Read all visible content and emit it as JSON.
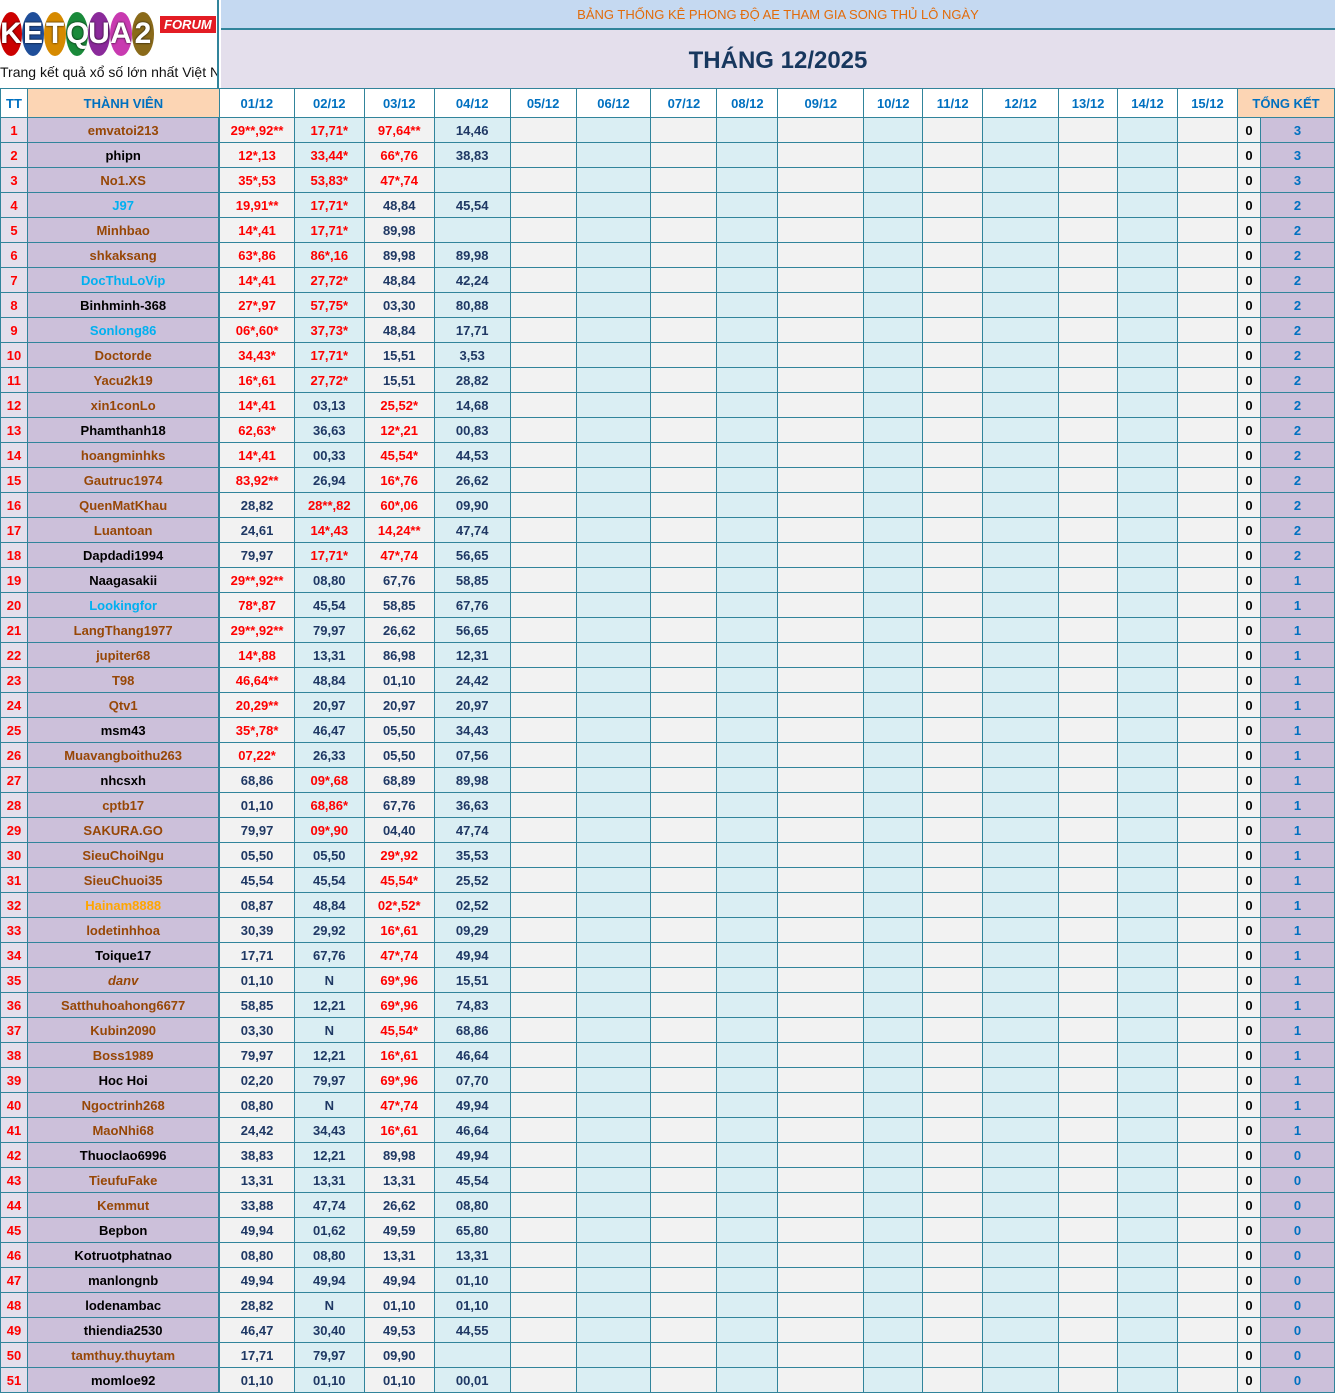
{
  "logo": {
    "letters": "KETQUA2",
    "badge": "FORUM",
    "tagline": "Trang kết quả xổ số lớn nhất Việt Nam"
  },
  "title": "BẢNG THỐNG KÊ PHONG ĐỘ AE THAM GIA SONG THỦ LÔ NGÀY",
  "month": "THÁNG 12/2025",
  "headers": {
    "tt": "TT",
    "member": "THÀNH VIÊN",
    "dates": [
      "01/12",
      "02/12",
      "03/12",
      "04/12",
      "05/12",
      "06/12",
      "07/12",
      "08/12",
      "09/12",
      "10/12",
      "11/12",
      "12/12",
      "13/12",
      "14/12",
      "15/12"
    ],
    "summary": "TỔNG KẾT"
  },
  "colors": {
    "border": "#31849b",
    "hit": "#ff0000",
    "value": "#1f3864",
    "name_brown": "#974706",
    "name_cyan": "#00b0f0",
    "name_orange": "#ffa500",
    "total": "#0070c0"
  },
  "rows": [
    {
      "tt": "1",
      "name": "emvatoi213",
      "style": "r",
      "v": [
        "29**,92**",
        "17,71*",
        "97,64**",
        "14,46"
      ],
      "z": "0",
      "total": "3"
    },
    {
      "tt": "2",
      "name": "phipn",
      "style": "b",
      "v": [
        "12*,13",
        "33,44*",
        "66*,76",
        "38,83"
      ],
      "z": "0",
      "total": "3"
    },
    {
      "tt": "3",
      "name": "No1.XS",
      "style": "r",
      "v": [
        "35*,53",
        "53,83*",
        "47*,74",
        ""
      ],
      "z": "0",
      "total": "3"
    },
    {
      "tt": "4",
      "name": "J97",
      "style": "c",
      "v": [
        "19,91**",
        "17,71*",
        "48,84",
        "45,54"
      ],
      "z": "0",
      "total": "2"
    },
    {
      "tt": "5",
      "name": "Minhbao",
      "style": "r",
      "v": [
        "14*,41",
        "17,71*",
        "89,98",
        ""
      ],
      "z": "0",
      "total": "2"
    },
    {
      "tt": "6",
      "name": "shkaksang",
      "style": "r",
      "v": [
        "63*,86",
        "86*,16",
        "89,98",
        "89,98"
      ],
      "z": "0",
      "total": "2"
    },
    {
      "tt": "7",
      "name": "DocThuLoVip",
      "style": "c",
      "v": [
        "14*,41",
        "27,72*",
        "48,84",
        "42,24"
      ],
      "z": "0",
      "total": "2"
    },
    {
      "tt": "8",
      "name": "Binhminh-368",
      "style": "b",
      "v": [
        "27*,97",
        "57,75*",
        "03,30",
        "80,88"
      ],
      "z": "0",
      "total": "2"
    },
    {
      "tt": "9",
      "name": "Sonlong86",
      "style": "c",
      "v": [
        "06*,60*",
        "37,73*",
        "48,84",
        "17,71"
      ],
      "z": "0",
      "total": "2"
    },
    {
      "tt": "10",
      "name": "Doctorde",
      "style": "r",
      "v": [
        "34,43*",
        "17,71*",
        "15,51",
        "3,53"
      ],
      "z": "0",
      "total": "2"
    },
    {
      "tt": "11",
      "name": "Yacu2k19",
      "style": "r",
      "v": [
        "16*,61",
        "27,72*",
        "15,51",
        "28,82"
      ],
      "z": "0",
      "total": "2"
    },
    {
      "tt": "12",
      "name": "xin1conLo",
      "style": "r",
      "v": [
        "14*,41",
        "03,13",
        "25,52*",
        "14,68"
      ],
      "z": "0",
      "total": "2"
    },
    {
      "tt": "13",
      "name": "Phamthanh18",
      "style": "b",
      "v": [
        "62,63*",
        "36,63",
        "12*,21",
        "00,83"
      ],
      "z": "0",
      "total": "2"
    },
    {
      "tt": "14",
      "name": "hoangminhks",
      "style": "r",
      "v": [
        "14*,41",
        "00,33",
        "45,54*",
        "44,53"
      ],
      "z": "0",
      "total": "2"
    },
    {
      "tt": "15",
      "name": "Gautruc1974",
      "style": "r",
      "v": [
        "83,92**",
        "26,94",
        "16*,76",
        "26,62"
      ],
      "z": "0",
      "total": "2"
    },
    {
      "tt": "16",
      "name": "QuenMatKhau",
      "style": "r",
      "v": [
        "28,82",
        "28**,82",
        "60*,06",
        "09,90"
      ],
      "z": "0",
      "total": "2"
    },
    {
      "tt": "17",
      "name": "Luantoan",
      "style": "r",
      "v": [
        "24,61",
        "14*,43",
        "14,24**",
        "47,74"
      ],
      "z": "0",
      "total": "2"
    },
    {
      "tt": "18",
      "name": "Dapdadi1994",
      "style": "b",
      "v": [
        "79,97",
        "17,71*",
        "47*,74",
        "56,65"
      ],
      "z": "0",
      "total": "2"
    },
    {
      "tt": "19",
      "name": "Naagasakii",
      "style": "b",
      "v": [
        "29**,92**",
        "08,80",
        "67,76",
        "58,85"
      ],
      "z": "0",
      "total": "1"
    },
    {
      "tt": "20",
      "name": "Lookingfor",
      "style": "c",
      "v": [
        "78*,87",
        "45,54",
        "58,85",
        "67,76"
      ],
      "z": "0",
      "total": "1"
    },
    {
      "tt": "21",
      "name": "LangThang1977",
      "style": "r",
      "v": [
        "29**,92**",
        "79,97",
        "26,62",
        "56,65"
      ],
      "z": "0",
      "total": "1"
    },
    {
      "tt": "22",
      "name": "jupiter68",
      "style": "r",
      "v": [
        "14*,88",
        "13,31",
        "86,98",
        "12,31"
      ],
      "z": "0",
      "total": "1"
    },
    {
      "tt": "23",
      "name": "T98",
      "style": "r",
      "v": [
        "46,64**",
        "48,84",
        "01,10",
        "24,42"
      ],
      "z": "0",
      "total": "1"
    },
    {
      "tt": "24",
      "name": "Qtv1",
      "style": "r",
      "v": [
        "20,29**",
        "20,97",
        "20,97",
        "20,97"
      ],
      "z": "0",
      "total": "1"
    },
    {
      "tt": "25",
      "name": "msm43",
      "style": "b",
      "v": [
        "35*,78*",
        "46,47",
        "05,50",
        "34,43"
      ],
      "z": "0",
      "total": "1"
    },
    {
      "tt": "26",
      "name": "Muavangboithu263",
      "style": "r",
      "v": [
        "07,22*",
        "26,33",
        "05,50",
        "07,56"
      ],
      "z": "0",
      "total": "1"
    },
    {
      "tt": "27",
      "name": "nhcsxh",
      "style": "b",
      "v": [
        "68,86",
        "09*,68",
        "68,89",
        "89,98"
      ],
      "z": "0",
      "total": "1"
    },
    {
      "tt": "28",
      "name": "cptb17",
      "style": "r",
      "v": [
        "01,10",
        "68,86*",
        "67,76",
        "36,63"
      ],
      "z": "0",
      "total": "1"
    },
    {
      "tt": "29",
      "name": "SAKURA.GO",
      "style": "r",
      "v": [
        "79,97",
        "09*,90",
        "04,40",
        "47,74"
      ],
      "z": "0",
      "total": "1"
    },
    {
      "tt": "30",
      "name": "SieuChoiNgu",
      "style": "r",
      "v": [
        "05,50",
        "05,50",
        "29*,92",
        "35,53"
      ],
      "z": "0",
      "total": "1"
    },
    {
      "tt": "31",
      "name": "SieuChuoi35",
      "style": "r",
      "v": [
        "45,54",
        "45,54",
        "45,54*",
        "25,52"
      ],
      "z": "0",
      "total": "1"
    },
    {
      "tt": "32",
      "name": "Hainam8888",
      "style": "o",
      "v": [
        "08,87",
        "48,84",
        "02*,52*",
        "02,52"
      ],
      "z": "0",
      "total": "1"
    },
    {
      "tt": "33",
      "name": "lodetinhhoa",
      "style": "r",
      "v": [
        "30,39",
        "29,92",
        "16*,61",
        "09,29"
      ],
      "z": "0",
      "total": "1"
    },
    {
      "tt": "34",
      "name": "Toique17",
      "style": "b",
      "v": [
        "17,71",
        "67,76",
        "47*,74",
        "49,94"
      ],
      "z": "0",
      "total": "1"
    },
    {
      "tt": "35",
      "name": "danv",
      "style": "i",
      "v": [
        "01,10",
        "N",
        "69*,96",
        "15,51"
      ],
      "z": "0",
      "total": "1"
    },
    {
      "tt": "36",
      "name": "Satthuhoahong6677",
      "style": "r",
      "v": [
        "58,85",
        "12,21",
        "69*,96",
        "74,83"
      ],
      "z": "0",
      "total": "1"
    },
    {
      "tt": "37",
      "name": "Kubin2090",
      "style": "r",
      "v": [
        "03,30",
        "N",
        "45,54*",
        "68,86"
      ],
      "z": "0",
      "total": "1"
    },
    {
      "tt": "38",
      "name": "Boss1989",
      "style": "r",
      "v": [
        "79,97",
        "12,21",
        "16*,61",
        "46,64"
      ],
      "z": "0",
      "total": "1"
    },
    {
      "tt": "39",
      "name": "Hoc Hoi",
      "style": "b",
      "v": [
        "02,20",
        "79,97",
        "69*,96",
        "07,70"
      ],
      "z": "0",
      "total": "1"
    },
    {
      "tt": "40",
      "name": "Ngoctrinh268",
      "style": "r",
      "v": [
        "08,80",
        "N",
        "47*,74",
        "49,94"
      ],
      "z": "0",
      "total": "1"
    },
    {
      "tt": "41",
      "name": "MaoNhi68",
      "style": "r",
      "v": [
        "24,42",
        "34,43",
        "16*,61",
        "46,64"
      ],
      "z": "0",
      "total": "1"
    },
    {
      "tt": "42",
      "name": "Thuoclao6996",
      "style": "b",
      "v": [
        "38,83",
        "12,21",
        "89,98",
        "49,94"
      ],
      "z": "0",
      "total": "0"
    },
    {
      "tt": "43",
      "name": "TieufuFake",
      "style": "r",
      "v": [
        "13,31",
        "13,31",
        "13,31",
        "45,54"
      ],
      "z": "0",
      "total": "0"
    },
    {
      "tt": "44",
      "name": "Kemmut",
      "style": "r",
      "v": [
        "33,88",
        "47,74",
        "26,62",
        "08,80"
      ],
      "z": "0",
      "total": "0"
    },
    {
      "tt": "45",
      "name": "Bepbon",
      "style": "b",
      "v": [
        "49,94",
        "01,62",
        "49,59",
        "65,80"
      ],
      "z": "0",
      "total": "0"
    },
    {
      "tt": "46",
      "name": "Kotruotphatnao",
      "style": "b",
      "v": [
        "08,80",
        "08,80",
        "13,31",
        "13,31"
      ],
      "z": "0",
      "total": "0"
    },
    {
      "tt": "47",
      "name": "manlongnb",
      "style": "b",
      "v": [
        "49,94",
        "49,94",
        "49,94",
        "01,10"
      ],
      "z": "0",
      "total": "0"
    },
    {
      "tt": "48",
      "name": "lodenambac",
      "style": "b",
      "v": [
        "28,82",
        "N",
        "01,10",
        "01,10"
      ],
      "z": "0",
      "total": "0"
    },
    {
      "tt": "49",
      "name": "thiendia2530",
      "style": "b",
      "v": [
        "46,47",
        "30,40",
        "49,53",
        "44,55"
      ],
      "z": "0",
      "total": "0"
    },
    {
      "tt": "50",
      "name": "tamthuy.thuytam",
      "style": "r",
      "v": [
        "17,71",
        "79,97",
        "09,90",
        ""
      ],
      "z": "0",
      "total": "0"
    },
    {
      "tt": "51",
      "name": "momloe92",
      "style": "b",
      "v": [
        "01,10",
        "01,10",
        "01,10",
        "00,01"
      ],
      "z": "0",
      "total": "0"
    }
  ]
}
